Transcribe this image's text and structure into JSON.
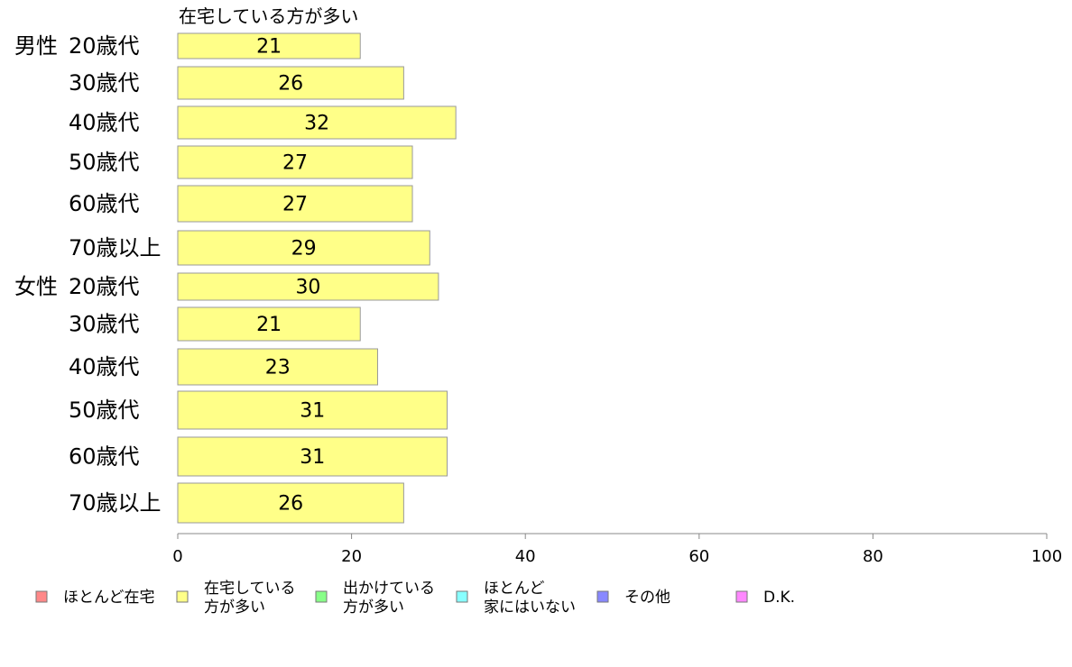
{
  "chart_data": {
    "type": "bar",
    "orientation": "horizontal",
    "series_title": "在宅している方が多い",
    "groups": [
      {
        "label": "男性",
        "start_index": 0
      },
      {
        "label": "女性",
        "start_index": 6
      }
    ],
    "categories": [
      "20歳代",
      "30歳代",
      "40歳代",
      "50歳代",
      "60歳代",
      "70歳以上",
      "20歳代",
      "30歳代",
      "40歳代",
      "50歳代",
      "60歳代",
      "70歳以上"
    ],
    "series": [
      {
        "name": "在宅している方が多い",
        "values": [
          21,
          26,
          32,
          27,
          27,
          29,
          30,
          21,
          23,
          31,
          31,
          26
        ],
        "color": "#ffff88"
      }
    ],
    "xlim": [
      0,
      100
    ],
    "xticks": [
      0,
      20,
      40,
      60,
      80,
      100
    ],
    "grid": false,
    "legend_position": "bottom",
    "legend": [
      {
        "label_lines": [
          "ほとんど在宅"
        ],
        "color": "#ff8888"
      },
      {
        "label_lines": [
          "在宅している",
          "方が多い"
        ],
        "color": "#ffff88"
      },
      {
        "label_lines": [
          "出かけている",
          "方が多い"
        ],
        "color": "#88ff88"
      },
      {
        "label_lines": [
          "ほとんど",
          "家にはいない"
        ],
        "color": "#88ffff"
      },
      {
        "label_lines": [
          "その他"
        ],
        "color": "#8888ff"
      },
      {
        "label_lines": [
          "D.K."
        ],
        "color": "#ff88ff"
      }
    ]
  }
}
